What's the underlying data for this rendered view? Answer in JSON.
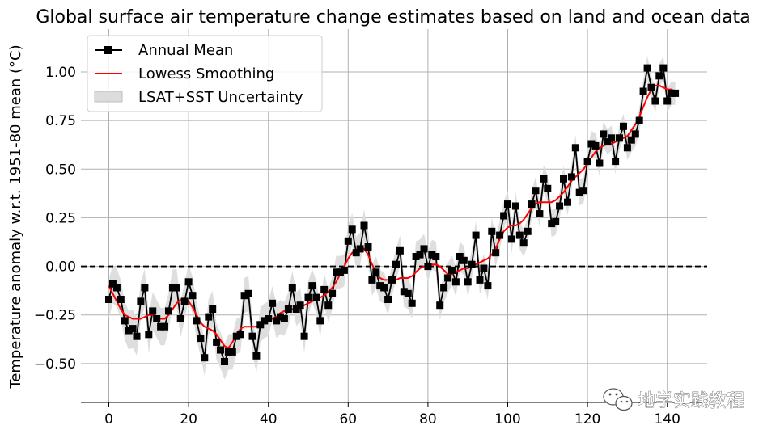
{
  "chart_data": {
    "type": "line",
    "title": "Global surface air temperature change estimates based on land and ocean data",
    "xlabel": "",
    "ylabel": "Temperature anomaly w.r.t. 1951-80 mean (°C)",
    "xlim": [
      -7,
      150
    ],
    "ylim": [
      -0.7,
      1.22
    ],
    "xticks": [
      0,
      20,
      40,
      60,
      80,
      100,
      120,
      140
    ],
    "xtick_labels": [
      "0",
      "20",
      "40",
      "60",
      "80",
      "100",
      "120",
      "140"
    ],
    "yticks": [
      -0.5,
      -0.25,
      0.0,
      0.25,
      0.5,
      0.75,
      1.0
    ],
    "ytick_labels": [
      "−0.50",
      "−0.25",
      "0.00",
      "0.25",
      "0.50",
      "0.75",
      "1.00"
    ],
    "grid": true,
    "legend_position": "top-left",
    "x": [
      0,
      1,
      2,
      3,
      4,
      5,
      6,
      7,
      8,
      9,
      10,
      11,
      12,
      13,
      14,
      15,
      16,
      17,
      18,
      19,
      20,
      21,
      22,
      23,
      24,
      25,
      26,
      27,
      28,
      29,
      30,
      31,
      32,
      33,
      34,
      35,
      36,
      37,
      38,
      39,
      40,
      41,
      42,
      43,
      44,
      45,
      46,
      47,
      48,
      49,
      50,
      51,
      52,
      53,
      54,
      55,
      56,
      57,
      58,
      59,
      60,
      61,
      62,
      63,
      64,
      65,
      66,
      67,
      68,
      69,
      70,
      71,
      72,
      73,
      74,
      75,
      76,
      77,
      78,
      79,
      80,
      81,
      82,
      83,
      84,
      85,
      86,
      87,
      88,
      89,
      90,
      91,
      92,
      93,
      94,
      95,
      96,
      97,
      98,
      99,
      100,
      101,
      102,
      103,
      104,
      105,
      106,
      107,
      108,
      109,
      110,
      111,
      112,
      113,
      114,
      115,
      116,
      117,
      118,
      119,
      120,
      121,
      122,
      123,
      124,
      125,
      126,
      127,
      128,
      129,
      130,
      131,
      132,
      133,
      134,
      135,
      136,
      137,
      138,
      139,
      140,
      141,
      142
    ],
    "series": [
      {
        "name": "Annual Mean",
        "color": "#000000",
        "marker": "square",
        "values": [
          -0.17,
          -0.09,
          -0.11,
          -0.17,
          -0.28,
          -0.33,
          -0.32,
          -0.36,
          -0.18,
          -0.11,
          -0.35,
          -0.23,
          -0.27,
          -0.31,
          -0.31,
          -0.23,
          -0.11,
          -0.11,
          -0.27,
          -0.18,
          -0.08,
          -0.15,
          -0.28,
          -0.37,
          -0.47,
          -0.26,
          -0.22,
          -0.39,
          -0.43,
          -0.49,
          -0.44,
          -0.44,
          -0.36,
          -0.35,
          -0.15,
          -0.14,
          -0.36,
          -0.46,
          -0.3,
          -0.28,
          -0.27,
          -0.19,
          -0.28,
          -0.26,
          -0.27,
          -0.22,
          -0.11,
          -0.22,
          -0.2,
          -0.36,
          -0.16,
          -0.1,
          -0.16,
          -0.28,
          -0.12,
          -0.2,
          -0.14,
          -0.03,
          -0.03,
          -0.02,
          0.13,
          0.19,
          0.07,
          0.09,
          0.21,
          0.1,
          -0.07,
          -0.03,
          -0.1,
          -0.11,
          -0.17,
          -0.07,
          0.01,
          0.08,
          -0.13,
          -0.14,
          -0.19,
          0.05,
          0.06,
          0.09,
          0.0,
          0.06,
          0.05,
          -0.2,
          -0.11,
          -0.06,
          -0.02,
          -0.08,
          0.05,
          0.03,
          -0.08,
          0.01,
          0.16,
          -0.07,
          -0.01,
          -0.1,
          0.18,
          0.07,
          0.16,
          0.26,
          0.32,
          0.14,
          0.31,
          0.16,
          0.12,
          0.18,
          0.32,
          0.39,
          0.27,
          0.45,
          0.4,
          0.22,
          0.23,
          0.31,
          0.45,
          0.33,
          0.46,
          0.61,
          0.38,
          0.39,
          0.54,
          0.63,
          0.62,
          0.53,
          0.68,
          0.64,
          0.66,
          0.54,
          0.66,
          0.72,
          0.61,
          0.65,
          0.68,
          0.75,
          0.9,
          1.02,
          0.92,
          0.85,
          0.98,
          1.02,
          0.85,
          0.89,
          0.89
        ]
      },
      {
        "name": "Lowess Smoothing",
        "color": "#ff0000",
        "values": [
          -0.1,
          -0.14,
          -0.18,
          -0.22,
          -0.25,
          -0.26,
          -0.27,
          -0.27,
          -0.27,
          -0.26,
          -0.25,
          -0.25,
          -0.26,
          -0.27,
          -0.27,
          -0.25,
          -0.22,
          -0.19,
          -0.17,
          -0.17,
          -0.18,
          -0.21,
          -0.25,
          -0.29,
          -0.31,
          -0.32,
          -0.33,
          -0.35,
          -0.38,
          -0.41,
          -0.42,
          -0.39,
          -0.35,
          -0.32,
          -0.31,
          -0.31,
          -0.31,
          -0.31,
          -0.3,
          -0.29,
          -0.28,
          -0.27,
          -0.26,
          -0.24,
          -0.23,
          -0.22,
          -0.22,
          -0.22,
          -0.21,
          -0.2,
          -0.19,
          -0.18,
          -0.17,
          -0.16,
          -0.15,
          -0.13,
          -0.11,
          -0.08,
          -0.04,
          0.0,
          0.04,
          0.07,
          0.08,
          0.09,
          0.09,
          0.06,
          0.01,
          -0.03,
          -0.06,
          -0.07,
          -0.07,
          -0.07,
          -0.07,
          -0.06,
          -0.06,
          -0.06,
          -0.05,
          -0.03,
          -0.01,
          0.0,
          0.01,
          0.01,
          0.01,
          0.0,
          -0.02,
          -0.04,
          -0.04,
          -0.03,
          -0.02,
          -0.01,
          -0.01,
          0.0,
          0.01,
          0.02,
          0.03,
          0.04,
          0.06,
          0.09,
          0.14,
          0.18,
          0.2,
          0.21,
          0.21,
          0.22,
          0.24,
          0.27,
          0.3,
          0.32,
          0.33,
          0.33,
          0.33,
          0.33,
          0.34,
          0.36,
          0.38,
          0.41,
          0.44,
          0.46,
          0.48,
          0.5,
          0.53,
          0.56,
          0.59,
          0.61,
          0.62,
          0.63,
          0.63,
          0.64,
          0.65,
          0.66,
          0.67,
          0.7,
          0.73,
          0.77,
          0.82,
          0.87,
          0.91,
          0.93,
          0.93,
          0.92,
          0.91,
          0.91,
          0.9
        ]
      }
    ],
    "uncertainty_band": {
      "name": "LSAT+SST Uncertainty",
      "color": "#dcdcdc",
      "halfwidth_early": 0.1,
      "halfwidth_late": 0.06
    },
    "reference_line": {
      "y": 0.0,
      "style": "dashed",
      "color": "#000000"
    },
    "legend": [
      "Annual Mean",
      "Lowess Smoothing",
      "LSAT+SST Uncertainty"
    ]
  },
  "watermark": {
    "text": "地学实践教程"
  }
}
